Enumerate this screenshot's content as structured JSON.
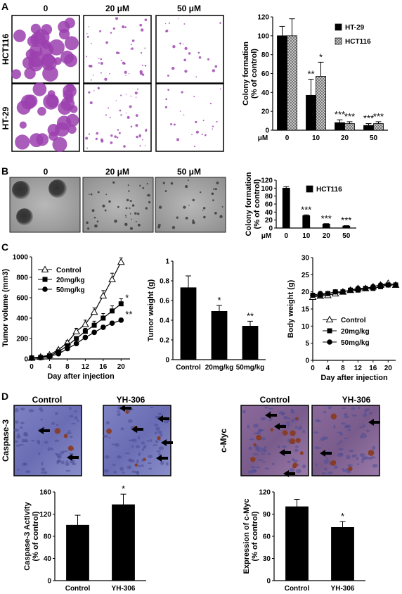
{
  "colors": {
    "bar_black": "#000000",
    "bar_hatched": "#c8c8c8",
    "purple_stain": "#9b3fae",
    "gray_agar": "#9a9a9a",
    "ihc_blue": "#6a6fb8",
    "ihc_brown": "#8a4a30"
  },
  "panels": {
    "A": {
      "label": "A",
      "col_headers": [
        "0",
        "20 μM",
        "50 μM"
      ],
      "row_labels": [
        "HCT116",
        "HT-29"
      ]
    },
    "B": {
      "label": "B",
      "col_headers": [
        "0",
        "20 μM",
        "50 μM"
      ]
    },
    "C": {
      "label": "C"
    },
    "D": {
      "label": "D",
      "left_headers": [
        "Control",
        "YH-306"
      ],
      "right_headers": [
        "Control",
        "YH-306"
      ],
      "left_row_label": "Caspase-3",
      "right_row_label": "c-Myc"
    }
  },
  "chart_data": [
    {
      "id": "A-colony",
      "type": "bar",
      "categories": [
        "0",
        "10",
        "20",
        "50"
      ],
      "category_unit": "μM",
      "series": [
        {
          "name": "HT-29",
          "values": [
            100,
            37,
            8,
            5
          ],
          "errors": [
            10,
            17,
            3,
            2
          ],
          "pattern": "solid",
          "stars": [
            "",
            "**",
            "***",
            "***"
          ]
        },
        {
          "name": "HCT116",
          "values": [
            100,
            57,
            7,
            7
          ],
          "errors": [
            18,
            15,
            2,
            2
          ],
          "pattern": "hatched",
          "stars": [
            "",
            "*",
            "***",
            "***"
          ]
        }
      ],
      "ylabel": "Colony formation\n(% of control)",
      "ylim": [
        0,
        120
      ],
      "yticks": [
        "0",
        "20",
        "40",
        "60",
        "80",
        "100",
        "120"
      ],
      "legend": "top-right"
    },
    {
      "id": "B-softagar",
      "type": "bar",
      "categories": [
        "0",
        "10",
        "20",
        "50"
      ],
      "category_unit": "μM",
      "series": [
        {
          "name": "HCT116",
          "values": [
            100,
            31,
            10,
            5
          ],
          "errors": [
            4,
            2,
            1,
            1
          ],
          "stars": [
            "",
            "***",
            "***",
            "***"
          ]
        }
      ],
      "ylabel": "Colony formation\n(% of control)",
      "ylim": [
        0,
        120
      ],
      "yticks": [
        "0",
        "20",
        "40",
        "60",
        "80",
        "100",
        "120"
      ],
      "legend": "top-right"
    },
    {
      "id": "C-tumor-volume",
      "type": "line",
      "x": [
        0,
        2,
        4,
        6,
        8,
        10,
        12,
        14,
        16,
        18,
        20
      ],
      "series": [
        {
          "name": "Control",
          "marker": "open-triangle",
          "values": [
            10,
            20,
            40,
            90,
            160,
            270,
            340,
            460,
            620,
            780,
            950
          ],
          "errors": [
            0,
            5,
            10,
            15,
            20,
            30,
            40,
            40,
            50,
            60,
            40
          ]
        },
        {
          "name": "20mg/kg",
          "marker": "filled-square",
          "values": [
            10,
            15,
            30,
            70,
            130,
            200,
            270,
            330,
            400,
            470,
            540
          ],
          "errors": [
            0,
            5,
            8,
            10,
            15,
            20,
            30,
            40,
            45,
            50,
            50
          ]
        },
        {
          "name": "50mg/kg",
          "marker": "filled-circle",
          "values": [
            10,
            12,
            25,
            50,
            100,
            150,
            210,
            260,
            310,
            350,
            380
          ],
          "errors": [
            0,
            4,
            6,
            8,
            10,
            15,
            20,
            20,
            20,
            20,
            20
          ]
        }
      ],
      "end_stars": [
        "",
        "*",
        "**"
      ],
      "xlabel": "Day after injection",
      "ylabel": "Tumor volume (mm3)",
      "xlim": [
        0,
        22
      ],
      "xticks": [
        "0",
        "4",
        "8",
        "12",
        "16",
        "20"
      ],
      "ylim": [
        0,
        1000
      ],
      "yticks": [
        "0",
        "200",
        "400",
        "600",
        "800",
        "1000"
      ],
      "legend": "top-left"
    },
    {
      "id": "C-tumor-weight",
      "type": "bar",
      "categories": [
        "Control",
        "20mg/kg",
        "50mg/kg"
      ],
      "values": [
        0.73,
        0.49,
        0.34
      ],
      "errors": [
        0.12,
        0.06,
        0.05
      ],
      "stars": [
        "",
        "*",
        "**"
      ],
      "ylabel": "Tumor weight (g)",
      "ylim": [
        0,
        1.0
      ],
      "yticks": [
        "0",
        "0.2",
        "0.4",
        "0.6",
        "0.8",
        "1"
      ]
    },
    {
      "id": "C-body-weight",
      "type": "line",
      "x": [
        0,
        2,
        4,
        6,
        8,
        10,
        12,
        14,
        16,
        18,
        20,
        22
      ],
      "series": [
        {
          "name": "Control",
          "marker": "open-triangle",
          "values": [
            18.5,
            18.8,
            19,
            19.5,
            20,
            20.5,
            21,
            21,
            21.5,
            22,
            22.5,
            22
          ]
        },
        {
          "name": "20mg/kg",
          "marker": "filled-square",
          "values": [
            19,
            19,
            19.5,
            20,
            20,
            20.5,
            20.5,
            21,
            21,
            21.5,
            22,
            22
          ]
        },
        {
          "name": "50mg/kg",
          "marker": "filled-circle",
          "values": [
            19,
            19.5,
            19.5,
            20,
            20,
            20.5,
            21,
            21,
            21.5,
            22,
            22,
            22
          ]
        }
      ],
      "xlabel": "Day after injection",
      "ylabel": "Body weight (g)",
      "xlim": [
        0,
        22
      ],
      "xticks": [
        "0",
        "4",
        "8",
        "12",
        "16",
        "20"
      ],
      "ylim": [
        0,
        30
      ],
      "yticks": [
        "0",
        "5",
        "10",
        "15",
        "20",
        "25",
        "30"
      ],
      "legend": "bottom-right"
    },
    {
      "id": "D-caspase3",
      "type": "bar",
      "categories": [
        "Control",
        "YH-306"
      ],
      "values": [
        100,
        137
      ],
      "errors": [
        18,
        19
      ],
      "stars": [
        "",
        "*"
      ],
      "ylabel": "Caspase-3 Activity\n(% of control)",
      "ylim": [
        0,
        160
      ],
      "yticks": [
        "0",
        "40",
        "80",
        "120",
        "160"
      ]
    },
    {
      "id": "D-cmyc",
      "type": "bar",
      "categories": [
        "Control",
        "YH-306"
      ],
      "values": [
        100,
        72
      ],
      "errors": [
        10,
        8
      ],
      "stars": [
        "",
        "*"
      ],
      "ylabel": "Expression of c-Myc\n(% of control)",
      "ylim": [
        0,
        120
      ],
      "yticks": [
        "0",
        "30",
        "60",
        "90",
        "120"
      ]
    }
  ]
}
